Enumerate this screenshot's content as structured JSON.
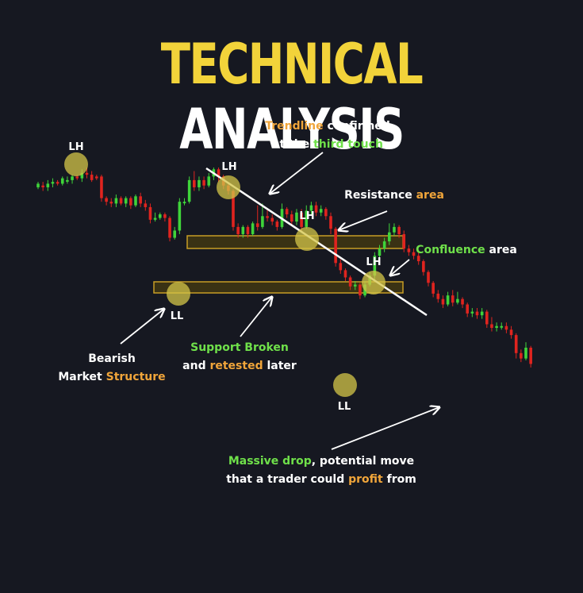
{
  "title": {
    "word1": "TECHNICAL",
    "word2": "ANALYSIS"
  },
  "colors": {
    "background": "#161821",
    "bullish": "#3fd43a",
    "bearish": "#e0241f",
    "highlight_orange": "#f0a53a",
    "highlight_green": "#6fe04a",
    "zone_fill": "#4a3d10",
    "zone_stroke": "#c79d25",
    "marker": "#d4c648",
    "trendline": "#ffffff"
  },
  "annotations": {
    "trendline": [
      {
        "text": "Trendline",
        "color": "orange"
      },
      {
        "text": " confirmed",
        "color": "white"
      },
      {
        "text": "at the ",
        "color": "white",
        "newline": true
      },
      {
        "text": "third touch",
        "color": "green"
      }
    ],
    "resistance": [
      {
        "text": "Resistance ",
        "color": "white"
      },
      {
        "text": "area",
        "color": "orange"
      }
    ],
    "confluence": [
      {
        "text": "Confluence",
        "color": "green"
      },
      {
        "text": " area",
        "color": "white"
      }
    ],
    "bearish": [
      {
        "text": "Bearish",
        "color": "white"
      },
      {
        "text": "Market ",
        "color": "white",
        "newline": true
      },
      {
        "text": "Structure",
        "color": "orange"
      }
    ],
    "support": [
      {
        "text": "Support Broken",
        "color": "green"
      },
      {
        "text": "and ",
        "color": "white",
        "newline": true
      },
      {
        "text": "retested",
        "color": "orange"
      },
      {
        "text": " later",
        "color": "white"
      }
    ],
    "drop": [
      {
        "text": "Massive drop",
        "color": "green"
      },
      {
        "text": ", potential move",
        "color": "white"
      },
      {
        "text": "that a trader could ",
        "color": "white",
        "newline": true
      },
      {
        "text": "profit",
        "color": "orange"
      },
      {
        "text": " from",
        "color": "white"
      }
    ]
  },
  "chart_data": {
    "type": "candlestick",
    "markers": [
      {
        "label": "LH"
      },
      {
        "label": "LH"
      },
      {
        "label": "LH"
      },
      {
        "label": "LH"
      },
      {
        "label": "LL"
      },
      {
        "label": "LL"
      }
    ],
    "candles": [
      [
        0.52,
        0.54,
        0.51,
        0.55
      ],
      [
        0.53,
        0.52,
        0.5,
        0.55
      ],
      [
        0.52,
        0.54,
        0.5,
        0.56
      ],
      [
        0.54,
        0.55,
        0.52,
        0.57
      ],
      [
        0.55,
        0.54,
        0.53,
        0.56
      ],
      [
        0.54,
        0.57,
        0.53,
        0.58
      ],
      [
        0.56,
        0.56,
        0.54,
        0.58
      ],
      [
        0.56,
        0.58,
        0.54,
        0.59
      ],
      [
        0.58,
        0.57,
        0.56,
        0.59
      ],
      [
        0.57,
        0.6,
        0.55,
        0.62
      ],
      [
        0.6,
        0.59,
        0.57,
        0.63
      ],
      [
        0.59,
        0.56,
        0.55,
        0.61
      ],
      [
        0.58,
        0.57,
        0.56,
        0.59
      ],
      [
        0.58,
        0.46,
        0.44,
        0.59
      ],
      [
        0.46,
        0.44,
        0.42,
        0.47
      ],
      [
        0.44,
        0.43,
        0.41,
        0.46
      ],
      [
        0.43,
        0.46,
        0.41,
        0.48
      ],
      [
        0.46,
        0.43,
        0.42,
        0.47
      ],
      [
        0.43,
        0.46,
        0.41,
        0.47
      ],
      [
        0.46,
        0.42,
        0.4,
        0.47
      ],
      [
        0.42,
        0.47,
        0.41,
        0.48
      ],
      [
        0.47,
        0.43,
        0.41,
        0.49
      ],
      [
        0.43,
        0.41,
        0.39,
        0.45
      ],
      [
        0.41,
        0.34,
        0.32,
        0.43
      ],
      [
        0.34,
        0.35,
        0.33,
        0.38
      ],
      [
        0.35,
        0.37,
        0.34,
        0.38
      ],
      [
        0.37,
        0.35,
        0.33,
        0.38
      ],
      [
        0.35,
        0.24,
        0.22,
        0.36
      ],
      [
        0.24,
        0.28,
        0.23,
        0.3
      ],
      [
        0.28,
        0.44,
        0.26,
        0.46
      ],
      [
        0.44,
        0.44,
        0.42,
        0.46
      ],
      [
        0.44,
        0.56,
        0.43,
        0.58
      ],
      [
        0.56,
        0.52,
        0.5,
        0.61
      ],
      [
        0.52,
        0.56,
        0.5,
        0.58
      ],
      [
        0.56,
        0.53,
        0.51,
        0.58
      ],
      [
        0.53,
        0.58,
        0.52,
        0.6
      ],
      [
        0.58,
        0.62,
        0.56,
        0.63
      ],
      [
        0.62,
        0.58,
        0.55,
        0.63
      ],
      [
        0.58,
        0.53,
        0.51,
        0.59
      ],
      [
        0.53,
        0.5,
        0.48,
        0.55
      ],
      [
        0.5,
        0.3,
        0.28,
        0.51
      ],
      [
        0.3,
        0.26,
        0.24,
        0.32
      ],
      [
        0.26,
        0.3,
        0.24,
        0.31
      ],
      [
        0.3,
        0.26,
        0.24,
        0.31
      ],
      [
        0.26,
        0.32,
        0.25,
        0.33
      ],
      [
        0.32,
        0.3,
        0.28,
        0.42
      ],
      [
        0.3,
        0.36,
        0.29,
        0.43
      ],
      [
        0.36,
        0.35,
        0.33,
        0.4
      ],
      [
        0.35,
        0.33,
        0.31,
        0.37
      ],
      [
        0.33,
        0.3,
        0.28,
        0.34
      ],
      [
        0.3,
        0.4,
        0.29,
        0.43
      ],
      [
        0.4,
        0.37,
        0.35,
        0.41
      ],
      [
        0.37,
        0.33,
        0.31,
        0.39
      ],
      [
        0.33,
        0.38,
        0.31,
        0.4
      ],
      [
        0.38,
        0.3,
        0.28,
        0.4
      ],
      [
        0.3,
        0.39,
        0.29,
        0.42
      ],
      [
        0.39,
        0.42,
        0.37,
        0.44
      ],
      [
        0.42,
        0.38,
        0.36,
        0.44
      ],
      [
        0.38,
        0.4,
        0.36,
        0.42
      ],
      [
        0.4,
        0.36,
        0.34,
        0.41
      ],
      [
        0.36,
        0.29,
        0.26,
        0.38
      ],
      [
        0.29,
        0.1,
        0.08,
        0.3
      ],
      [
        0.1,
        0.06,
        0.04,
        0.12
      ],
      [
        0.06,
        0.02,
        0.0,
        0.07
      ],
      [
        0.02,
        -0.03,
        -0.05,
        0.03
      ],
      [
        -0.03,
        -0.02,
        -0.05,
        0.0
      ],
      [
        -0.02,
        -0.08,
        -0.1,
        -0.01
      ],
      [
        -0.08,
        -0.02,
        -0.09,
        0.0
      ],
      [
        -0.02,
        0.03,
        -0.03,
        0.05
      ],
      [
        0.03,
        0.14,
        0.01,
        0.16
      ],
      [
        0.14,
        0.18,
        0.12,
        0.2
      ],
      [
        0.18,
        0.22,
        0.16,
        0.24
      ],
      [
        0.22,
        0.27,
        0.2,
        0.32
      ],
      [
        0.27,
        0.3,
        0.25,
        0.32
      ],
      [
        0.3,
        0.26,
        0.24,
        0.31
      ],
      [
        0.26,
        0.18,
        0.16,
        0.28
      ],
      [
        0.18,
        0.16,
        0.14,
        0.2
      ],
      [
        0.16,
        0.14,
        0.12,
        0.18
      ],
      [
        0.14,
        0.11,
        0.09,
        0.16
      ],
      [
        0.11,
        0.05,
        0.03,
        0.12
      ],
      [
        0.05,
        -0.01,
        -0.03,
        0.06
      ],
      [
        -0.01,
        -0.07,
        -0.09,
        0.0
      ],
      [
        -0.07,
        -0.1,
        -0.12,
        -0.05
      ],
      [
        -0.1,
        -0.13,
        -0.15,
        -0.08
      ],
      [
        -0.13,
        -0.08,
        -0.14,
        -0.06
      ],
      [
        -0.08,
        -0.12,
        -0.14,
        -0.05
      ],
      [
        -0.12,
        -0.1,
        -0.13,
        -0.06
      ],
      [
        -0.1,
        -0.13,
        -0.15,
        -0.09
      ],
      [
        -0.13,
        -0.18,
        -0.2,
        -0.12
      ],
      [
        -0.18,
        -0.17,
        -0.2,
        -0.15
      ],
      [
        -0.17,
        -0.19,
        -0.21,
        -0.15
      ],
      [
        -0.19,
        -0.17,
        -0.21,
        -0.15
      ],
      [
        -0.17,
        -0.24,
        -0.26,
        -0.16
      ],
      [
        -0.24,
        -0.26,
        -0.28,
        -0.2
      ],
      [
        -0.26,
        -0.25,
        -0.28,
        -0.23
      ],
      [
        -0.25,
        -0.25,
        -0.27,
        -0.23
      ],
      [
        -0.25,
        -0.27,
        -0.29,
        -0.23
      ],
      [
        -0.27,
        -0.3,
        -0.32,
        -0.25
      ],
      [
        -0.3,
        -0.4,
        -0.43,
        -0.29
      ],
      [
        -0.4,
        -0.43,
        -0.45,
        -0.38
      ],
      [
        -0.43,
        -0.37,
        -0.44,
        -0.34
      ],
      [
        -0.37,
        -0.46,
        -0.48,
        -0.36
      ]
    ]
  }
}
